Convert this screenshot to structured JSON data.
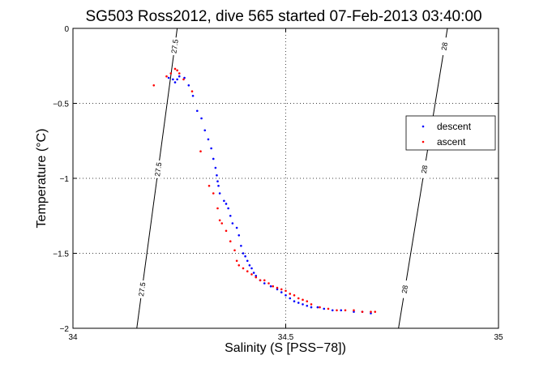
{
  "chart_data": {
    "type": "scatter",
    "title": "SG503 Ross2012, dive 565 started 07-Feb-2013 03:40:00",
    "xlabel": "Salinity (S [PSS−78])",
    "ylabel": "Temperature (°C)",
    "xlim": [
      34,
      35
    ],
    "ylim": [
      -2,
      0
    ],
    "x_ticks": [
      "34",
      "34.5",
      "35"
    ],
    "y_ticks": [
      "0",
      "−0.5",
      "−1",
      "−1.5",
      "−2"
    ],
    "grid": "dotted",
    "legend_placement": "right",
    "series": [
      {
        "name": "descent",
        "color": "#0000ff",
        "x": [
          34.225,
          34.235,
          34.24,
          34.245,
          34.25,
          34.262,
          34.272,
          34.282,
          34.292,
          34.302,
          34.31,
          34.318,
          34.325,
          34.33,
          34.335,
          34.338,
          34.34,
          34.342,
          34.345,
          34.355,
          34.36,
          34.365,
          34.37,
          34.375,
          34.385,
          34.39,
          34.395,
          34.4,
          34.405,
          34.41,
          34.415,
          34.42,
          34.425,
          34.43,
          34.44,
          34.45,
          34.465,
          34.48,
          34.49,
          34.5,
          34.51,
          34.52,
          34.53,
          34.54,
          34.55,
          34.56,
          34.575,
          34.59,
          34.61,
          34.63,
          34.66,
          34.68,
          34.7
        ],
        "y": [
          -0.33,
          -0.34,
          -0.36,
          -0.34,
          -0.32,
          -0.33,
          -0.38,
          -0.45,
          -0.55,
          -0.6,
          -0.68,
          -0.74,
          -0.8,
          -0.87,
          -0.93,
          -0.98,
          -1.02,
          -1.05,
          -1.1,
          -1.15,
          -1.17,
          -1.2,
          -1.25,
          -1.3,
          -1.33,
          -1.38,
          -1.45,
          -1.5,
          -1.52,
          -1.55,
          -1.58,
          -1.6,
          -1.63,
          -1.65,
          -1.68,
          -1.7,
          -1.72,
          -1.74,
          -1.76,
          -1.78,
          -1.8,
          -1.82,
          -1.83,
          -1.84,
          -1.85,
          -1.86,
          -1.86,
          -1.87,
          -1.88,
          -1.88,
          -1.89,
          -1.89,
          -1.9
        ]
      },
      {
        "name": "ascent",
        "color": "#ff0000",
        "x": [
          34.19,
          34.22,
          34.23,
          34.24,
          34.245,
          34.25,
          34.26,
          34.28,
          34.3,
          34.32,
          34.33,
          34.34,
          34.345,
          34.35,
          34.36,
          34.37,
          34.38,
          34.385,
          34.39,
          34.4,
          34.41,
          34.42,
          34.43,
          34.44,
          34.45,
          34.46,
          34.47,
          34.48,
          34.49,
          34.5,
          34.51,
          34.52,
          34.53,
          34.54,
          34.55,
          34.56,
          34.58,
          34.6,
          34.62,
          34.64,
          34.66,
          34.68,
          34.7,
          34.71
        ],
        "y": [
          -0.38,
          -0.32,
          -0.3,
          -0.27,
          -0.28,
          -0.3,
          -0.34,
          -0.42,
          -0.82,
          -1.05,
          -1.1,
          -1.2,
          -1.28,
          -1.3,
          -1.35,
          -1.42,
          -1.48,
          -1.55,
          -1.58,
          -1.6,
          -1.62,
          -1.64,
          -1.66,
          -1.68,
          -1.68,
          -1.7,
          -1.72,
          -1.73,
          -1.74,
          -1.75,
          -1.77,
          -1.78,
          -1.8,
          -1.81,
          -1.82,
          -1.84,
          -1.86,
          -1.87,
          -1.88,
          -1.88,
          -1.88,
          -1.89,
          -1.89,
          -1.89
        ]
      }
    ],
    "contours": [
      {
        "label": "27.5",
        "color": "#000000",
        "x_top": 34.245,
        "x_bottom": 34.15
      },
      {
        "label": "28",
        "color": "#000000",
        "x_top": 34.88,
        "x_bottom": 34.765
      }
    ]
  }
}
